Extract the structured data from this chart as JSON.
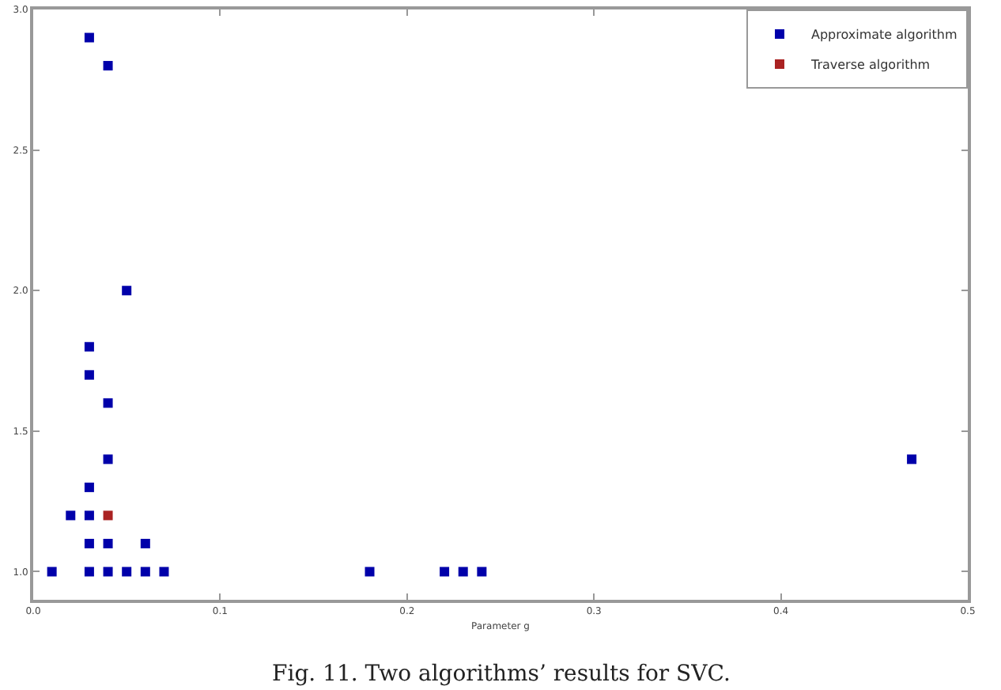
{
  "chart_data": {
    "type": "scatter",
    "xlabel": "Parameter g",
    "annotations": [
      "Fig. 11. Two algorithms’ results for SVC."
    ],
    "xlim": [
      0,
      0.5
    ],
    "xticks": [
      {
        "value": 0,
        "label": "0.0"
      },
      0.1,
      0.2,
      0.3,
      0.4,
      0.5
    ],
    "ylim": [
      0.9,
      3.0
    ],
    "yticks": [
      {
        "value": 1,
        "label": "1.0"
      },
      1.5,
      {
        "value": 2,
        "label": "2.0"
      },
      2.5,
      {
        "value": 3,
        "label": "3.0"
      }
    ],
    "grid": false,
    "legend": "top right",
    "marker": "square",
    "series": [
      {
        "name": "Approximate algorithm",
        "color": "#0000aa",
        "x": [
          0.01,
          0.03,
          0.04,
          0.05,
          0.03,
          0.03,
          0.04,
          0.04,
          0.03,
          0.02,
          0.03,
          0.03,
          0.04,
          0.06,
          0.03,
          0.04,
          0.05,
          0.06,
          0.07,
          0.18,
          0.22,
          0.23,
          0.24,
          0.47
        ],
        "values": [
          1.0,
          2.9,
          2.8,
          2.0,
          1.8,
          1.7,
          1.6,
          1.4,
          1.3,
          1.2,
          1.2,
          1.1,
          1.1,
          1.1,
          1.0,
          1.0,
          1.0,
          1.0,
          1.0,
          1.0,
          1.0,
          1.0,
          1.0,
          1.4
        ]
      },
      {
        "name": "Traverse algorithm",
        "color": "#aa2222",
        "x": [
          0.04
        ],
        "values": [
          1.2
        ]
      }
    ]
  }
}
